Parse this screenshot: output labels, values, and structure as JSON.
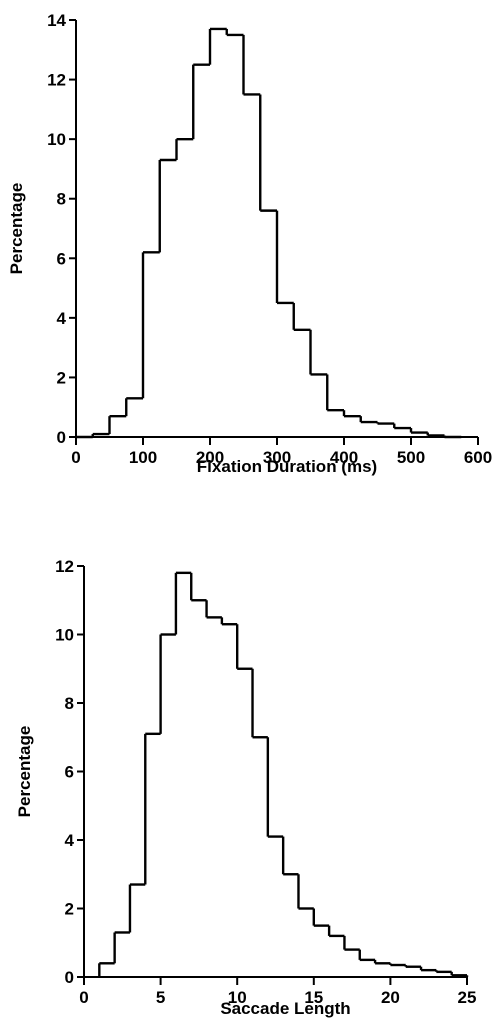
{
  "chart_data": [
    {
      "type": "bar",
      "title": "",
      "xlabel": "Fixation Duration (ms)",
      "ylabel": "Percentage",
      "xlim": [
        0,
        600
      ],
      "ylim": [
        0,
        14
      ],
      "x_ticks": [
        "0",
        "100",
        "200",
        "300",
        "400",
        "500",
        "600"
      ],
      "y_ticks": [
        "0",
        "2",
        "4",
        "6",
        "8",
        "10",
        "12",
        "14"
      ],
      "bin_width": 25,
      "bins": [
        {
          "start": 0,
          "value": 0
        },
        {
          "start": 25,
          "value": 0.1
        },
        {
          "start": 50,
          "value": 0.7
        },
        {
          "start": 75,
          "value": 1.3
        },
        {
          "start": 100,
          "value": 6.2
        },
        {
          "start": 125,
          "value": 9.3
        },
        {
          "start": 150,
          "value": 10.0
        },
        {
          "start": 175,
          "value": 12.5
        },
        {
          "start": 200,
          "value": 13.7
        },
        {
          "start": 225,
          "value": 13.5
        },
        {
          "start": 250,
          "value": 11.5
        },
        {
          "start": 275,
          "value": 7.6
        },
        {
          "start": 300,
          "value": 4.5
        },
        {
          "start": 325,
          "value": 3.6
        },
        {
          "start": 350,
          "value": 2.1
        },
        {
          "start": 375,
          "value": 0.9
        },
        {
          "start": 400,
          "value": 0.7
        },
        {
          "start": 425,
          "value": 0.5
        },
        {
          "start": 450,
          "value": 0.45
        },
        {
          "start": 475,
          "value": 0.3
        },
        {
          "start": 500,
          "value": 0.15
        },
        {
          "start": 525,
          "value": 0.05
        },
        {
          "start": 550,
          "value": 0
        }
      ],
      "grid": false
    },
    {
      "type": "bar",
      "title": "",
      "xlabel": "Saccade Length",
      "ylabel": "Percentage",
      "xlim": [
        0,
        25
      ],
      "ylim": [
        0,
        12
      ],
      "x_ticks": [
        "0",
        "5",
        "10",
        "15",
        "20",
        "25"
      ],
      "y_ticks": [
        "0",
        "2",
        "4",
        "6",
        "8",
        "10",
        "12"
      ],
      "bin_width": 1,
      "bins": [
        {
          "start": 1,
          "value": 0.4
        },
        {
          "start": 2,
          "value": 1.3
        },
        {
          "start": 3,
          "value": 2.7
        },
        {
          "start": 4,
          "value": 7.1
        },
        {
          "start": 5,
          "value": 10.0
        },
        {
          "start": 6,
          "value": 11.8
        },
        {
          "start": 7,
          "value": 11.0
        },
        {
          "start": 8,
          "value": 10.5
        },
        {
          "start": 9,
          "value": 10.3
        },
        {
          "start": 10,
          "value": 9.0
        },
        {
          "start": 11,
          "value": 7.0
        },
        {
          "start": 12,
          "value": 4.1
        },
        {
          "start": 13,
          "value": 3.0
        },
        {
          "start": 14,
          "value": 2.0
        },
        {
          "start": 15,
          "value": 1.5
        },
        {
          "start": 16,
          "value": 1.2
        },
        {
          "start": 17,
          "value": 0.8
        },
        {
          "start": 18,
          "value": 0.5
        },
        {
          "start": 19,
          "value": 0.4
        },
        {
          "start": 20,
          "value": 0.35
        },
        {
          "start": 21,
          "value": 0.3
        },
        {
          "start": 22,
          "value": 0.2
        },
        {
          "start": 23,
          "value": 0.15
        },
        {
          "start": 24,
          "value": 0.05
        }
      ],
      "grid": false
    }
  ]
}
